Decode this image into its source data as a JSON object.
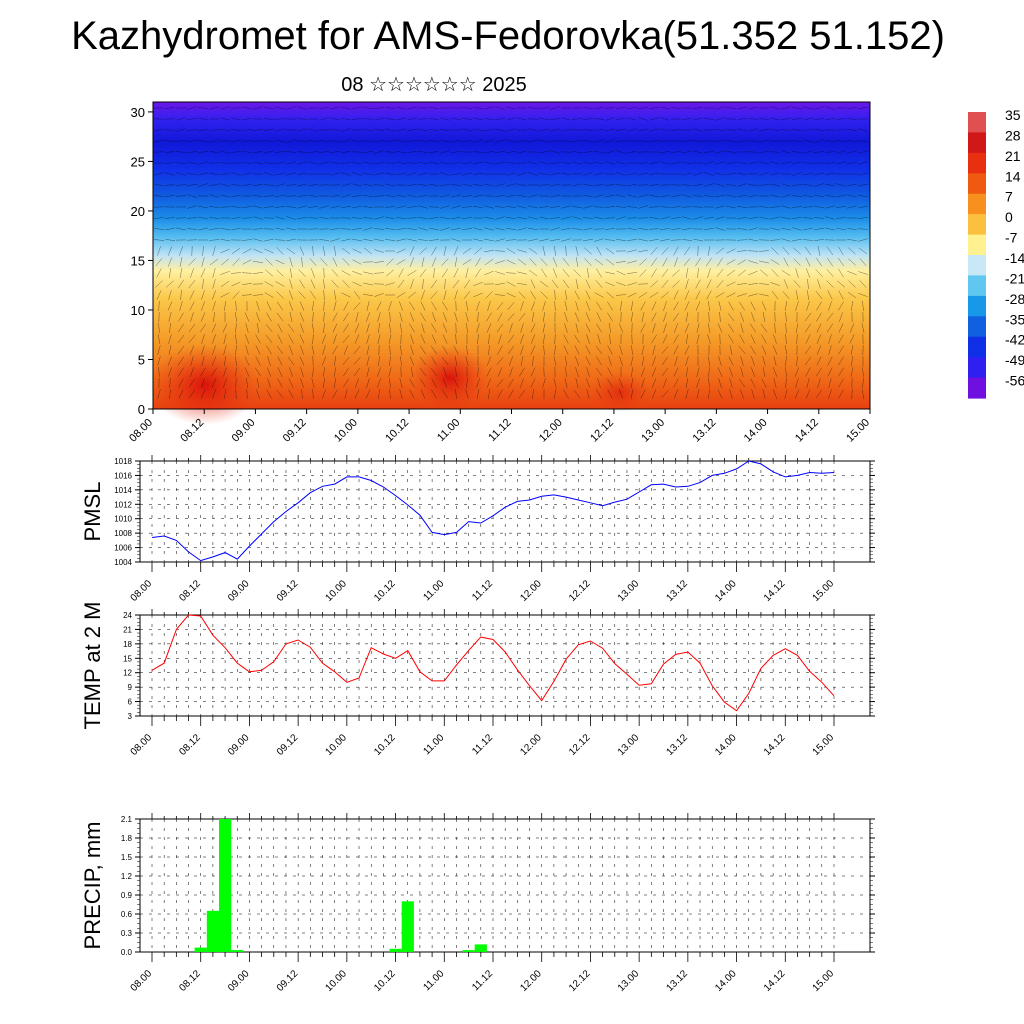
{
  "header": {
    "title": "Kazhydromet for AMS-Fedorovka(51.352 51.152)",
    "subtitle": "08 ☆☆☆☆☆☆ 2025"
  },
  "chart_data": [
    {
      "type": "heatmap",
      "panel": "cross-section",
      "title": "",
      "xlabel": "",
      "ylabel": "",
      "x_tick_labels": [
        "08.00",
        "08.12",
        "09.00",
        "09.12",
        "10.00",
        "10.12",
        "11.00",
        "11.12",
        "12.00",
        "12.12",
        "13.00",
        "13.12",
        "14.00",
        "14.12",
        "15.00"
      ],
      "y_ticks": [
        0,
        5,
        10,
        15,
        20,
        25,
        30
      ],
      "ylim": [
        0,
        31
      ],
      "overlay": "wind vectors",
      "colorbar": {
        "labels": [
          "35",
          "28",
          "21",
          "14",
          "7",
          "0",
          "-7",
          "-14",
          "-21",
          "-28",
          "-35",
          "-42",
          "-49",
          "-56"
        ],
        "values": [
          35,
          28,
          21,
          14,
          7,
          0,
          -7,
          -14,
          -21,
          -28,
          -35,
          -42,
          -49,
          -56
        ],
        "colors": [
          "#e05050",
          "#d01818",
          "#e83010",
          "#f05a10",
          "#f89020",
          "#fcc040",
          "#fff090",
          "#c8e8f8",
          "#60c8f0",
          "#1898e8",
          "#1060e0",
          "#1030e8",
          "#3020f0",
          "#7010e0"
        ]
      }
    },
    {
      "type": "line",
      "panel": "pmsl",
      "ylabel": "PMSL",
      "x_tick_labels": [
        "08.00",
        "08.12",
        "09.00",
        "09.12",
        "10.00",
        "10.12",
        "11.00",
        "11.12",
        "12.00",
        "12.12",
        "13.00",
        "13.12",
        "14.00",
        "14.12",
        "15.00"
      ],
      "ylim": [
        1004,
        1018
      ],
      "y_ticks": [
        1004,
        1006,
        1008,
        1010,
        1012,
        1014,
        1016,
        1018
      ],
      "color": "#0000ff",
      "values": [
        1007.4,
        1007.6,
        1007.0,
        1005.4,
        1004.2,
        1004.7,
        1005.3,
        1004.4,
        1006.2,
        1007.9,
        1009.6,
        1011.0,
        1012.2,
        1013.6,
        1014.5,
        1014.8,
        1015.8,
        1015.8,
        1015.3,
        1014.4,
        1013.2,
        1011.9,
        1010.5,
        1008.1,
        1007.8,
        1008.1,
        1009.6,
        1009.4,
        1010.4,
        1011.6,
        1012.4,
        1012.6,
        1013.1,
        1013.3,
        1013.0,
        1012.6,
        1012.2,
        1011.8,
        1012.3,
        1012.7,
        1013.7,
        1014.7,
        1014.8,
        1014.4,
        1014.5,
        1015.0,
        1016.0,
        1016.3,
        1016.9,
        1018.0,
        1017.6,
        1016.5,
        1015.8,
        1016.0,
        1016.4,
        1016.3,
        1016.4
      ]
    },
    {
      "type": "line",
      "panel": "temperature",
      "ylabel": "TEMP at 2 M",
      "x_tick_labels": [
        "08.00",
        "08.12",
        "09.00",
        "09.12",
        "10.00",
        "10.12",
        "11.00",
        "11.12",
        "12.00",
        "12.12",
        "13.00",
        "13.12",
        "14.00",
        "14.12",
        "15.00"
      ],
      "ylim": [
        3,
        24
      ],
      "y_ticks": [
        3,
        6,
        9,
        12,
        15,
        18,
        21,
        24
      ],
      "color": "#ff0000",
      "values": [
        12.5,
        14.0,
        21.0,
        24.0,
        23.8,
        19.8,
        17.2,
        14.0,
        12.2,
        12.5,
        14.3,
        18.0,
        18.8,
        17.3,
        14.0,
        12.2,
        10.0,
        10.9,
        17.2,
        15.9,
        15.0,
        16.6,
        12.2,
        10.3,
        10.3,
        13.6,
        16.6,
        19.4,
        18.9,
        16.3,
        12.6,
        9.3,
        6.2,
        10.2,
        14.8,
        17.8,
        18.6,
        17.1,
        13.9,
        11.7,
        9.4,
        9.7,
        13.8,
        15.8,
        16.3,
        14.0,
        9.3,
        5.9,
        4.1,
        7.7,
        12.9,
        15.6,
        17.0,
        15.6,
        12.3,
        10.0,
        7.2
      ]
    },
    {
      "type": "bar",
      "panel": "precipitation",
      "ylabel": "PRECIP, mm",
      "x_tick_labels": [
        "08.00",
        "08.12",
        "09.00",
        "09.12",
        "10.00",
        "10.12",
        "11.00",
        "11.12",
        "12.00",
        "12.12",
        "13.00",
        "13.12",
        "14.00",
        "14.12",
        "15.00"
      ],
      "ylim": [
        0.0,
        2.1
      ],
      "y_tick_labels": [
        "0.0",
        "0.3",
        "0.6",
        "0.9",
        "1.2",
        "1.5",
        "1.8",
        "2.1"
      ],
      "color": "#00ff00",
      "values": [
        0,
        0,
        0,
        0,
        0.07,
        0.65,
        2.1,
        0.03,
        0,
        0,
        0,
        0,
        0,
        0,
        0,
        0,
        0,
        0,
        0,
        0,
        0.05,
        0.8,
        0,
        0,
        0,
        0,
        0.03,
        0.12,
        0,
        0,
        0,
        0,
        0,
        0,
        0,
        0,
        0,
        0,
        0,
        0,
        0,
        0,
        0,
        0,
        0,
        0,
        0,
        0,
        0,
        0,
        0,
        0,
        0,
        0,
        0,
        0,
        0
      ]
    }
  ]
}
